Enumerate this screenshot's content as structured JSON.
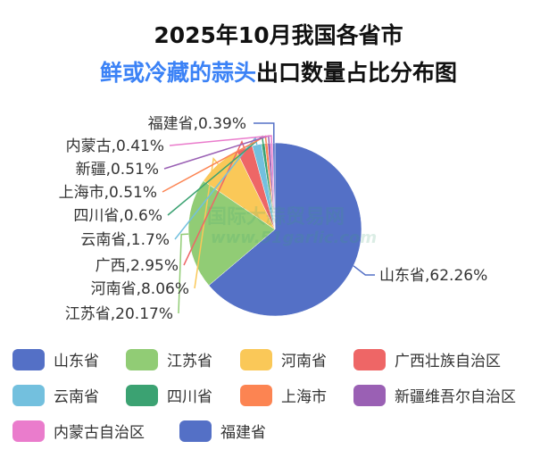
{
  "title_line1": "2025年10月我国各省市",
  "title_line2_highlight": "鲜或冷藏的蒜头",
  "title_line2_rest": "出口数量占比分布图",
  "watermark": {
    "cn": "国际大蒜贸易网",
    "url": "www.51garlic.com"
  },
  "chart_data": {
    "type": "pie",
    "title": "2025年10月我国各省市鲜或冷藏的蒜头出口数量占比分布图",
    "legend_position": "bottom",
    "slices": [
      {
        "name": "山东省",
        "label": "山东省,62.26%",
        "value": 62.26,
        "color": "#5470c6"
      },
      {
        "name": "江苏省",
        "label": "江苏省,20.17%",
        "value": 20.17,
        "color": "#91cc75"
      },
      {
        "name": "河南省",
        "label": "河南省,8.06%",
        "value": 8.06,
        "color": "#fac858"
      },
      {
        "name": "广西壮族自治区",
        "label": "广西,2.95%",
        "value": 2.95,
        "color": "#ee6666"
      },
      {
        "name": "云南省",
        "label": "云南省,1.7%",
        "value": 1.7,
        "color": "#73c0de"
      },
      {
        "name": "四川省",
        "label": "四川省,0.6%",
        "value": 0.6,
        "color": "#3ba272"
      },
      {
        "name": "上海市",
        "label": "上海市,0.51%",
        "value": 0.51,
        "color": "#fc8452"
      },
      {
        "name": "新疆维吾尔自治区",
        "label": "新疆,0.51%",
        "value": 0.51,
        "color": "#9a60b4"
      },
      {
        "name": "内蒙古自治区",
        "label": "内蒙古,0.41%",
        "value": 0.41,
        "color": "#ea7ccc"
      },
      {
        "name": "福建省",
        "label": "福建省,0.39%",
        "value": 0.39,
        "color": "#5470c6"
      }
    ]
  }
}
